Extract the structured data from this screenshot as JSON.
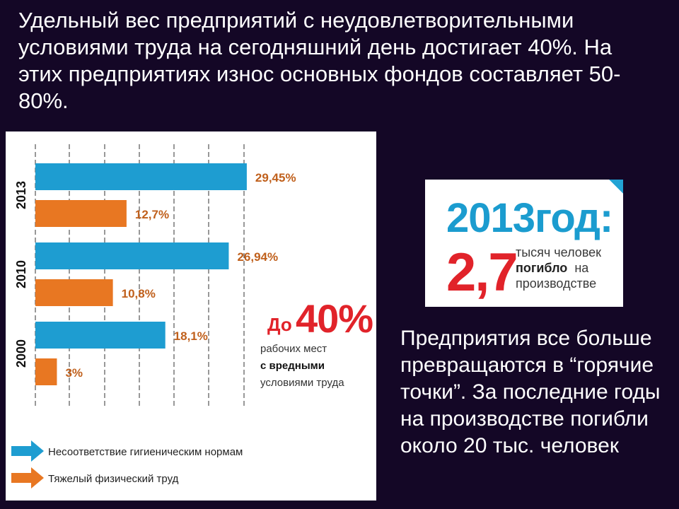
{
  "heading": "Удельный вес предприятий с неудовлетворительными условиями труда на сегодняшний день достигает 40%. На этих предприятиях износ основных фондов составляет 50-80%.",
  "chart_data": {
    "type": "bar",
    "orientation": "horizontal",
    "categories": [
      "2013",
      "2010",
      "2000"
    ],
    "series": [
      {
        "name": "Несоответствие гигиеническим нормам",
        "values": [
          29.45,
          26.94,
          18.1
        ],
        "labels": [
          "29,45%",
          "26,94%",
          "18,1%"
        ],
        "color": "#1e9dd1"
      },
      {
        "name": "Тяжелый физический труд",
        "values": [
          12.7,
          10.8,
          3
        ],
        "labels": [
          "12,7%",
          "10,8%",
          "3%"
        ],
        "color": "#e87722"
      }
    ],
    "xlim": [
      0,
      40
    ],
    "grid": "vertical dashed",
    "legend_position": "bottom",
    "annotation": {
      "prefix": "До",
      "value": "40%",
      "line1": "рабочих мест",
      "line2": "с вредными",
      "line3": "условиями труда"
    }
  },
  "stat_card": {
    "year": "2013год:",
    "number": "2,7",
    "line1": "тысяч человек",
    "bold": "погибло",
    "on": "на",
    "line3": "производстве",
    "accent_colors": {
      "year": "#1b9ccf",
      "number": "#e1232a"
    }
  },
  "side_text": "Предприятия все больше превращаются в “горячие точки”. За последние годы на производстве погибли около 20 тыс. человек"
}
